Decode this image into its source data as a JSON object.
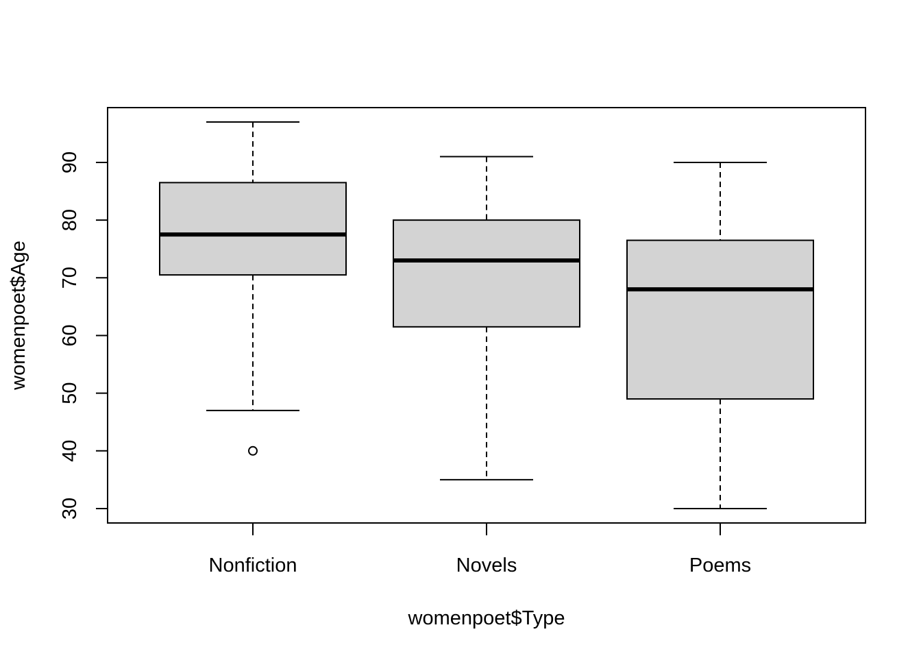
{
  "chart_data": {
    "type": "boxplot",
    "title": "",
    "xlabel": "womenpoet$Type",
    "ylabel": "womenpoet$Age",
    "categories": [
      "Nonfiction",
      "Novels",
      "Poems"
    ],
    "boxes": [
      {
        "name": "Nonfiction",
        "whisker_low": 47,
        "q1": 70.5,
        "median": 77.5,
        "q3": 86.5,
        "whisker_high": 97,
        "outliers": [
          40
        ]
      },
      {
        "name": "Novels",
        "whisker_low": 35,
        "q1": 61.5,
        "median": 73,
        "q3": 80,
        "whisker_high": 91,
        "outliers": []
      },
      {
        "name": "Poems",
        "whisker_low": 30,
        "q1": 49,
        "median": 68,
        "q3": 76.5,
        "whisker_high": 90,
        "outliers": []
      }
    ],
    "ylim": [
      27.5,
      99.5
    ],
    "yticks": [
      30,
      40,
      50,
      60,
      70,
      80,
      90
    ],
    "box_fill": "#d3d3d3",
    "grid": false,
    "legend": "none"
  }
}
